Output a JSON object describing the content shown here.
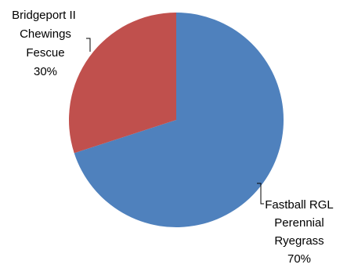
{
  "chart_data": {
    "type": "pie",
    "slices": [
      {
        "label_lines": [
          "Fastball RGL",
          "Perennial",
          "Ryegrass"
        ],
        "value": 70,
        "pct_label": "70%",
        "color": "#4F81BD"
      },
      {
        "label_lines": [
          "Bridgeport II",
          "Chewings",
          "Fescue"
        ],
        "value": 30,
        "pct_label": "30%",
        "color": "#C0504D"
      }
    ],
    "start_angle_deg": 0,
    "direction": "clockwise"
  }
}
